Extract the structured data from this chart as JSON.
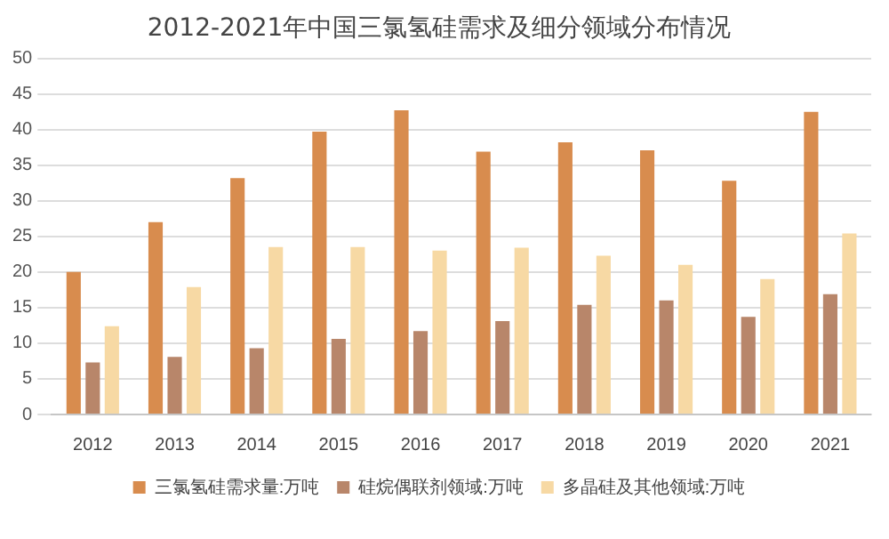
{
  "chart_data": {
    "type": "bar",
    "title": "2012-2021年中国三氯氢硅需求及细分领域分布情况",
    "categories": [
      "2012",
      "2013",
      "2014",
      "2015",
      "2016",
      "2017",
      "2018",
      "2019",
      "2020",
      "2021"
    ],
    "series": [
      {
        "name": "三氯氢硅需求量:万吨",
        "color": "#d88c4e",
        "values": [
          20,
          27,
          33.2,
          39.7,
          42.7,
          36.9,
          38.2,
          37.1,
          32.8,
          42.5
        ]
      },
      {
        "name": "硅烷偶联剂领域:万吨",
        "color": "#b8866a",
        "values": [
          7.3,
          8.1,
          9.3,
          10.6,
          11.7,
          13.1,
          15.4,
          16,
          13.7,
          16.9
        ]
      },
      {
        "name": "多晶硅及其他领域:万吨",
        "color": "#f7d9a4",
        "values": [
          12.4,
          17.9,
          23.5,
          23.5,
          23,
          23.4,
          22.3,
          21,
          19,
          25.4
        ]
      }
    ],
    "ylim": [
      0,
      50
    ],
    "yticks": [
      0,
      5,
      10,
      15,
      20,
      25,
      30,
      35,
      40,
      45,
      50
    ],
    "grid": "y",
    "legend": "bottom"
  }
}
